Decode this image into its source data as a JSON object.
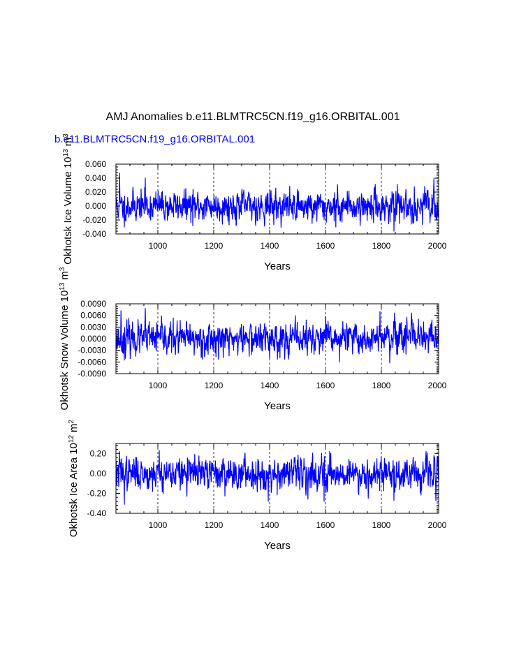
{
  "figure": {
    "title": "AMJ Anomalies b.e11.BLMTRC5CN.f19_g16.ORBITAL.001",
    "subtitle": "b.e11.BLMTRC5CN.f19_g16.ORBITAL.001",
    "colors": {
      "line": "#0000ff",
      "axes": "#000000",
      "grid": "#000000",
      "subtitle": "#0000ff"
    }
  },
  "chart_data": [
    {
      "type": "line",
      "id": "ice-volume",
      "title": "",
      "xlabel": "Years",
      "ylabel": "Okhotsk Ice Volume 10",
      "ylabel_sup": "13",
      "ylabel_unit": "m",
      "ylabel_unit_sup": "3",
      "xlim": [
        850,
        2005
      ],
      "ylim": [
        -0.04,
        0.06
      ],
      "xticks": [
        1000,
        1200,
        1400,
        1600,
        1800,
        2000
      ],
      "xtick_labels": [
        "1000",
        "1200",
        "1400",
        "1600",
        "1800",
        "2000"
      ],
      "yticks": [
        -0.04,
        -0.02,
        0.0,
        0.02,
        0.04,
        0.06
      ],
      "ytick_labels": [
        "-0.040",
        "-0.020",
        "0.000",
        "0.020",
        "0.040",
        "0.060"
      ],
      "grid": "vertical dashed at x ticks",
      "series": [
        {
          "name": "b.e11.BLMTRC5CN.f19_g16.ORBITAL.001",
          "x_start": 850,
          "x_end": 2005,
          "sd": 0.01,
          "min": -0.036,
          "max": 0.047,
          "seed": 11,
          "peaks": [
            [
              863,
              0.047
            ],
            [
              880,
              -0.03
            ],
            [
              955,
              0.04
            ],
            [
              1125,
              -0.028
            ],
            [
              1552,
              -0.025
            ],
            [
              1637,
              -0.03
            ],
            [
              1845,
              -0.036
            ],
            [
              1865,
              -0.025
            ],
            [
              1955,
              0.028
            ]
          ]
        }
      ]
    },
    {
      "type": "line",
      "id": "snow-volume",
      "title": "",
      "xlabel": "Years",
      "ylabel": "Okhotsk Snow Volume 10",
      "ylabel_sup": "13",
      "ylabel_unit": "m",
      "ylabel_unit_sup": "3",
      "xlim": [
        850,
        2005
      ],
      "ylim": [
        -0.009,
        0.009
      ],
      "xticks": [
        1000,
        1200,
        1400,
        1600,
        1800,
        2000
      ],
      "xtick_labels": [
        "1000",
        "1200",
        "1400",
        "1600",
        "1800",
        "2000"
      ],
      "yticks": [
        -0.009,
        -0.006,
        -0.003,
        0.0,
        0.003,
        0.006,
        0.009
      ],
      "ytick_labels": [
        "-0.0090",
        "-0.0060",
        "-0.0030",
        "0.0000",
        "0.0030",
        "0.0060",
        "0.0090"
      ],
      "grid": "vertical dashed at x ticks",
      "series": [
        {
          "name": "b.e11.BLMTRC5CN.f19_g16.ORBITAL.001",
          "x_start": 850,
          "x_end": 2005,
          "sd": 0.0019,
          "min": -0.0062,
          "max": 0.0078,
          "seed": 23,
          "peaks": [
            [
              868,
              0.0072
            ],
            [
              880,
              -0.0055
            ],
            [
              955,
              0.0078
            ],
            [
              1180,
              -0.004
            ],
            [
              1400,
              -0.005
            ],
            [
              1650,
              -0.006
            ],
            [
              1795,
              0.007
            ],
            [
              1830,
              -0.0062
            ]
          ]
        }
      ]
    },
    {
      "type": "line",
      "id": "ice-area",
      "title": "",
      "xlabel": "Years",
      "ylabel": "Okhotsk Ice Area 10",
      "ylabel_sup": "12",
      "ylabel_unit": "m",
      "ylabel_unit_sup": "2",
      "xlim": [
        850,
        2005
      ],
      "ylim": [
        -0.4,
        0.3
      ],
      "xticks": [
        1000,
        1200,
        1400,
        1600,
        1800,
        2000
      ],
      "xtick_labels": [
        "1000",
        "1200",
        "1400",
        "1600",
        "1800",
        "2000"
      ],
      "yticks": [
        -0.4,
        -0.2,
        0.0,
        0.2
      ],
      "ytick_labels": [
        "-0.40",
        "-0.20",
        "0.00",
        "0.20"
      ],
      "grid": "vertical dashed at x ticks",
      "series": [
        {
          "name": "b.e11.BLMTRC5CN.f19_g16.ORBITAL.001",
          "x_start": 850,
          "x_end": 2005,
          "sd": 0.075,
          "min": -0.31,
          "max": 0.24,
          "seed": 37,
          "peaks": [
            [
              862,
              0.22
            ],
            [
              880,
              -0.31
            ],
            [
              1005,
              0.23
            ],
            [
              1395,
              -0.28
            ],
            [
              1595,
              -0.28
            ],
            [
              1615,
              0.22
            ],
            [
              1845,
              -0.27
            ],
            [
              1960,
              0.22
            ],
            [
              1995,
              -0.27
            ]
          ]
        }
      ]
    }
  ]
}
